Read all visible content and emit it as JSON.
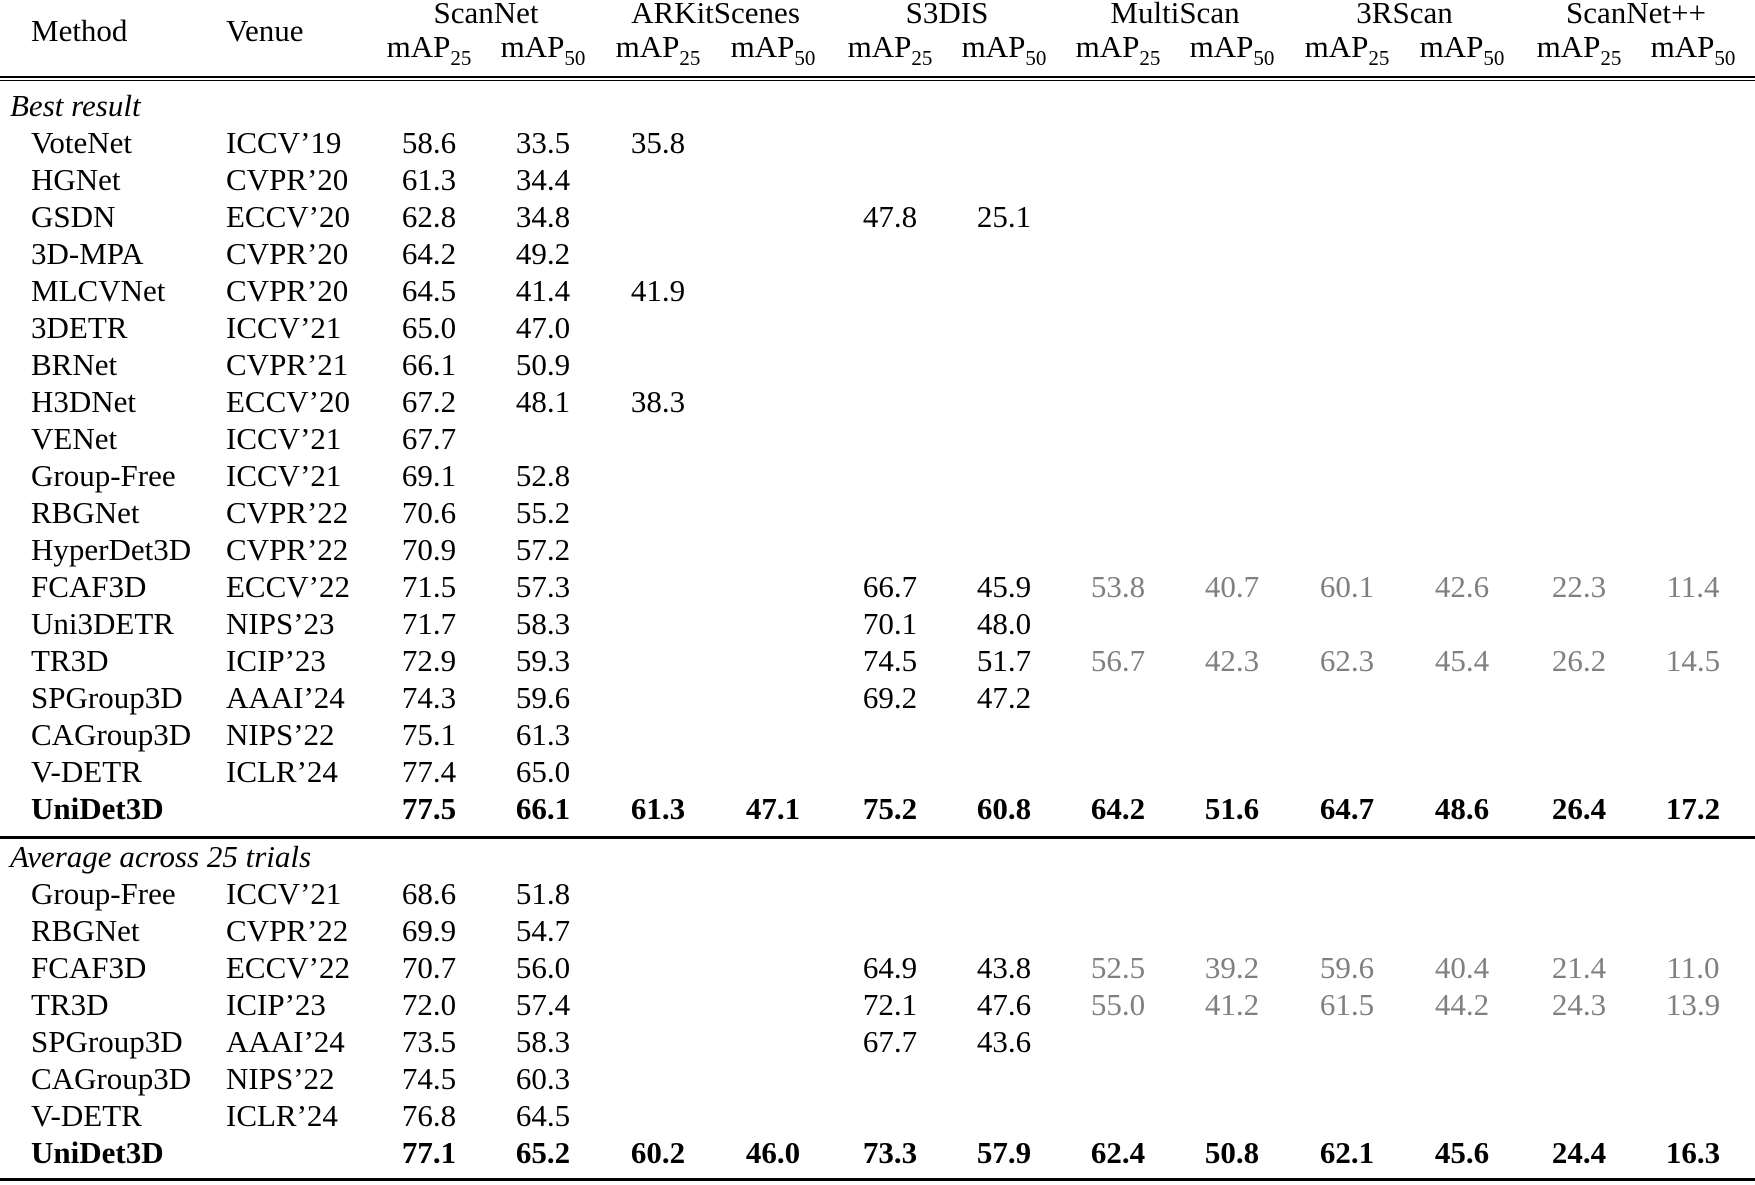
{
  "table": {
    "columns": {
      "method": "Method",
      "venue": "Venue",
      "datasets": [
        "ScanNet",
        "ARKitScenes",
        "S3DIS",
        "MultiScan",
        "3RScan",
        "ScanNet++"
      ],
      "metric_base": "mAP",
      "metric_subs": [
        "25",
        "50"
      ]
    },
    "sections": [
      {
        "title": "Best result",
        "rows": [
          {
            "method": "VoteNet",
            "venue": "ICCV’19",
            "values": [
              "58.6",
              "33.5",
              "35.8",
              "",
              "",
              "",
              "",
              "",
              "",
              "",
              "",
              ""
            ]
          },
          {
            "method": "HGNet",
            "venue": "CVPR’20",
            "values": [
              "61.3",
              "34.4",
              "",
              "",
              "",
              "",
              "",
              "",
              "",
              "",
              "",
              ""
            ]
          },
          {
            "method": "GSDN",
            "venue": "ECCV’20",
            "values": [
              "62.8",
              "34.8",
              "",
              "",
              "47.8",
              "25.1",
              "",
              "",
              "",
              "",
              "",
              ""
            ]
          },
          {
            "method": "3D-MPA",
            "venue": "CVPR’20",
            "values": [
              "64.2",
              "49.2",
              "",
              "",
              "",
              "",
              "",
              "",
              "",
              "",
              "",
              ""
            ]
          },
          {
            "method": "MLCVNet",
            "venue": "CVPR’20",
            "values": [
              "64.5",
              "41.4",
              "41.9",
              "",
              "",
              "",
              "",
              "",
              "",
              "",
              "",
              ""
            ]
          },
          {
            "method": "3DETR",
            "venue": "ICCV’21",
            "values": [
              "65.0",
              "47.0",
              "",
              "",
              "",
              "",
              "",
              "",
              "",
              "",
              "",
              ""
            ]
          },
          {
            "method": "BRNet",
            "venue": "CVPR’21",
            "values": [
              "66.1",
              "50.9",
              "",
              "",
              "",
              "",
              "",
              "",
              "",
              "",
              "",
              ""
            ]
          },
          {
            "method": "H3DNet",
            "venue": "ECCV’20",
            "values": [
              "67.2",
              "48.1",
              "38.3",
              "",
              "",
              "",
              "",
              "",
              "",
              "",
              "",
              ""
            ]
          },
          {
            "method": "VENet",
            "venue": "ICCV’21",
            "values": [
              "67.7",
              "",
              "",
              "",
              "",
              "",
              "",
              "",
              "",
              "",
              "",
              ""
            ]
          },
          {
            "method": "Group-Free",
            "venue": "ICCV’21",
            "values": [
              "69.1",
              "52.8",
              "",
              "",
              "",
              "",
              "",
              "",
              "",
              "",
              "",
              ""
            ]
          },
          {
            "method": "RBGNet",
            "venue": "CVPR’22",
            "values": [
              "70.6",
              "55.2",
              "",
              "",
              "",
              "",
              "",
              "",
              "",
              "",
              "",
              ""
            ]
          },
          {
            "method": "HyperDet3D",
            "venue": "CVPR’22",
            "values": [
              "70.9",
              "57.2",
              "",
              "",
              "",
              "",
              "",
              "",
              "",
              "",
              "",
              ""
            ]
          },
          {
            "method": "FCAF3D",
            "venue": "ECCV’22",
            "values": [
              "71.5",
              "57.3",
              "",
              "",
              "66.7",
              "45.9",
              "53.8",
              "40.7",
              "60.1",
              "42.6",
              "22.3",
              "11.4"
            ],
            "grey_from": 6
          },
          {
            "method": "Uni3DETR",
            "venue": "NIPS’23",
            "values": [
              "71.7",
              "58.3",
              "",
              "",
              "70.1",
              "48.0",
              "",
              "",
              "",
              "",
              "",
              ""
            ]
          },
          {
            "method": "TR3D",
            "venue": "ICIP’23",
            "values": [
              "72.9",
              "59.3",
              "",
              "",
              "74.5",
              "51.7",
              "56.7",
              "42.3",
              "62.3",
              "45.4",
              "26.2",
              "14.5"
            ],
            "grey_from": 6
          },
          {
            "method": "SPGroup3D",
            "venue": "AAAI’24",
            "values": [
              "74.3",
              "59.6",
              "",
              "",
              "69.2",
              "47.2",
              "",
              "",
              "",
              "",
              "",
              ""
            ]
          },
          {
            "method": "CAGroup3D",
            "venue": "NIPS’22",
            "values": [
              "75.1",
              "61.3",
              "",
              "",
              "",
              "",
              "",
              "",
              "",
              "",
              "",
              ""
            ]
          },
          {
            "method": "V-DETR",
            "venue": "ICLR’24",
            "values": [
              "77.4",
              "65.0",
              "",
              "",
              "",
              "",
              "",
              "",
              "",
              "",
              "",
              ""
            ]
          },
          {
            "method": "UniDet3D",
            "venue": "",
            "values": [
              "77.5",
              "66.1",
              "61.3",
              "47.1",
              "75.2",
              "60.8",
              "64.2",
              "51.6",
              "64.7",
              "48.6",
              "26.4",
              "17.2"
            ],
            "bold": true
          }
        ]
      },
      {
        "title": "Average across 25 trials",
        "rows": [
          {
            "method": "Group-Free",
            "venue": "ICCV’21",
            "values": [
              "68.6",
              "51.8",
              "",
              "",
              "",
              "",
              "",
              "",
              "",
              "",
              "",
              ""
            ]
          },
          {
            "method": "RBGNet",
            "venue": "CVPR’22",
            "values": [
              "69.9",
              "54.7",
              "",
              "",
              "",
              "",
              "",
              "",
              "",
              "",
              "",
              ""
            ]
          },
          {
            "method": "FCAF3D",
            "venue": "ECCV’22",
            "values": [
              "70.7",
              "56.0",
              "",
              "",
              "64.9",
              "43.8",
              "52.5",
              "39.2",
              "59.6",
              "40.4",
              "21.4",
              "11.0"
            ],
            "grey_from": 6
          },
          {
            "method": "TR3D",
            "venue": "ICIP’23",
            "values": [
              "72.0",
              "57.4",
              "",
              "",
              "72.1",
              "47.6",
              "55.0",
              "41.2",
              "61.5",
              "44.2",
              "24.3",
              "13.9"
            ],
            "grey_from": 6
          },
          {
            "method": "SPGroup3D",
            "venue": "AAAI’24",
            "values": [
              "73.5",
              "58.3",
              "",
              "",
              "67.7",
              "43.6",
              "",
              "",
              "",
              "",
              "",
              ""
            ]
          },
          {
            "method": "CAGroup3D",
            "venue": "NIPS’22",
            "values": [
              "74.5",
              "60.3",
              "",
              "",
              "",
              "",
              "",
              "",
              "",
              "",
              "",
              ""
            ]
          },
          {
            "method": "V-DETR",
            "venue": "ICLR’24",
            "values": [
              "76.8",
              "64.5",
              "",
              "",
              "",
              "",
              "",
              "",
              "",
              "",
              "",
              ""
            ]
          },
          {
            "method": "UniDet3D",
            "venue": "",
            "values": [
              "77.1",
              "65.2",
              "60.2",
              "46.0",
              "73.3",
              "57.9",
              "62.4",
              "50.8",
              "62.1",
              "45.6",
              "24.4",
              "16.3"
            ],
            "bold": true
          }
        ]
      }
    ],
    "colors": {
      "text": "#000000",
      "grey_values": "#808080"
    }
  }
}
